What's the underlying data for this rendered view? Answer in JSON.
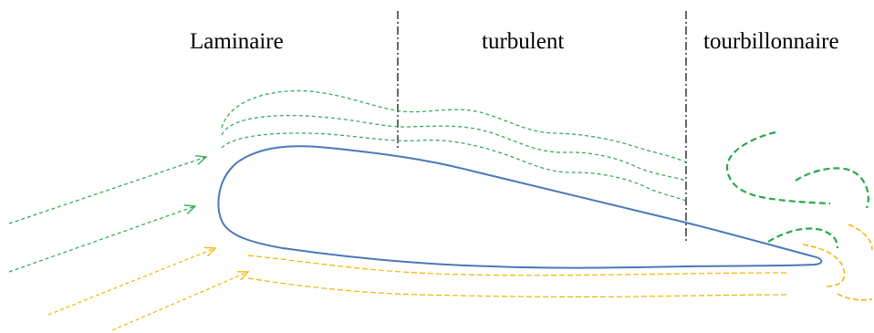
{
  "regions": {
    "laminar": "Laminaire",
    "turbulent": "turbulent",
    "vortex": "tourbillonnaire"
  },
  "colors": {
    "airfoil": "#4a78b8",
    "upper_flow": "#2aa84a",
    "lower_flow": "#f2b400",
    "boundary": "#000000"
  }
}
